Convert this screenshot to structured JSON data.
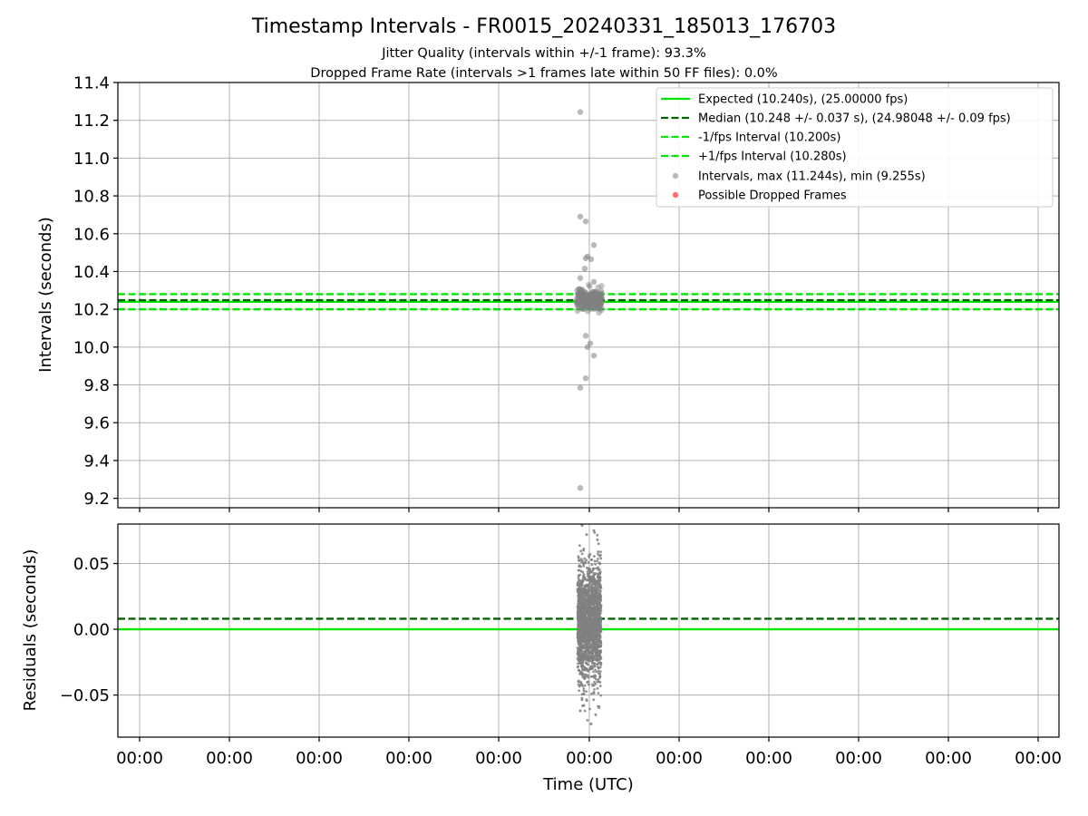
{
  "chart_data": [
    {
      "type": "scatter",
      "title": "Timestamp Intervals - FR0015_20240331_185013_176703",
      "subtitle_1": "Jitter Quality (intervals within +/-1 frame): 93.3%",
      "subtitle_2": "Dropped Frame Rate (intervals >1 frames late within 50 FF files): 0.0%",
      "ylabel": "Intervals (seconds)",
      "ylim": [
        9.15,
        11.4
      ],
      "yticks": [
        9.2,
        9.4,
        9.6,
        9.8,
        10.0,
        10.2,
        10.4,
        10.6,
        10.8,
        11.0,
        11.2,
        11.4
      ],
      "ytick_labels": [
        "9.2",
        "9.4",
        "9.6",
        "9.8",
        "10.0",
        "10.2",
        "10.4",
        "10.6",
        "10.8",
        "11.0",
        "11.2",
        "11.4"
      ],
      "grid": true,
      "legend_position": "top-right",
      "reference_lines": [
        {
          "name": "Expected (10.240s), (25.00000 fps)",
          "value": 10.24,
          "style": "solid",
          "color": "#00e600"
        },
        {
          "name": "Median (10.248 +/- 0.037 s), (24.98048 +/- 0.09 fps)",
          "value": 10.248,
          "style": "dashed",
          "color": "#006400"
        },
        {
          "name": "-1/fps Interval (10.200s)",
          "value": 10.2,
          "style": "dashed",
          "color": "#00e600"
        },
        {
          "name": "+1/fps Interval (10.280s)",
          "value": 10.28,
          "style": "dashed",
          "color": "#00e600"
        }
      ],
      "series": [
        {
          "name": "Intervals, max (11.244s), min (9.255s)",
          "color": "#808080"
        },
        {
          "name": "Possible Dropped Frames",
          "color": "#ff0000"
        }
      ],
      "outliers": [
        {
          "x": -0.1,
          "y": 11.244
        },
        {
          "x": -0.1,
          "y": 10.69
        },
        {
          "x": -0.04,
          "y": 10.665
        },
        {
          "x": 0.05,
          "y": 10.54
        },
        {
          "x": -0.02,
          "y": 10.48
        },
        {
          "x": 0.02,
          "y": 10.465
        },
        {
          "x": -0.04,
          "y": 10.47
        },
        {
          "x": -0.05,
          "y": 10.415
        },
        {
          "x": -0.1,
          "y": 10.365
        },
        {
          "x": 0.05,
          "y": 10.345
        },
        {
          "x": -0.04,
          "y": 10.06
        },
        {
          "x": 0.01,
          "y": 10.02
        },
        {
          "x": -0.02,
          "y": 10.0
        },
        {
          "x": 0.05,
          "y": 9.955
        },
        {
          "x": -0.04,
          "y": 9.835
        },
        {
          "x": -0.1,
          "y": 9.785
        },
        {
          "x": -0.1,
          "y": 9.255
        }
      ]
    },
    {
      "type": "scatter",
      "ylabel": "Residuals (seconds)",
      "xlabel": "Time (UTC)",
      "ylim": [
        -0.082,
        0.08
      ],
      "yticks": [
        -0.05,
        0.0,
        0.05
      ],
      "ytick_labels": [
        "−0.05",
        "0.00",
        "0.05"
      ],
      "xtick_labels": [
        "00:00",
        "00:00",
        "00:00",
        "00:00",
        "00:00",
        "00:00",
        "00:00",
        "00:00",
        "00:00",
        "00:00",
        "00:00"
      ],
      "grid": true,
      "reference_lines": [
        {
          "value": 0.0,
          "style": "solid",
          "color": "#00e600"
        },
        {
          "value": 0.008,
          "style": "dashed",
          "color": "#006400"
        }
      ],
      "residual_range": [
        -0.072,
        0.079
      ],
      "outliers": [
        {
          "x": -0.08,
          "y": 0.079
        },
        {
          "x": 0.05,
          "y": 0.075
        },
        {
          "x": -0.03,
          "y": 0.072
        },
        {
          "x": 0.09,
          "y": 0.068
        },
        {
          "x": -0.1,
          "y": -0.062
        },
        {
          "x": 0.07,
          "y": -0.065
        },
        {
          "x": 0.02,
          "y": -0.072
        },
        {
          "x": -0.06,
          "y": -0.058
        }
      ]
    }
  ]
}
